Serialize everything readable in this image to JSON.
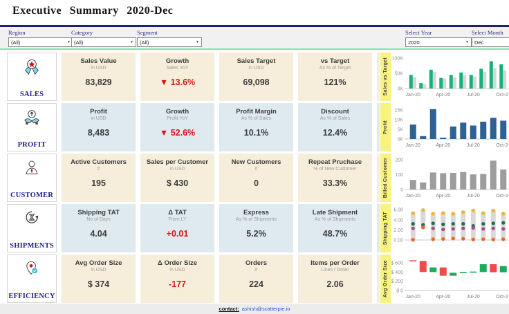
{
  "header": {
    "title": "Executive Summary 2020-Dec"
  },
  "filters": {
    "region": {
      "label": "Region",
      "value": "(All)"
    },
    "category": {
      "label": "Category",
      "value": "(All)"
    },
    "segment": {
      "label": "Segment",
      "value": "(All)"
    },
    "year": {
      "label": "Select Year",
      "value": "2020"
    },
    "month": {
      "label": "Select Month",
      "value": "Dec"
    }
  },
  "rows": [
    {
      "label": "SALES",
      "icon": "medal-icon",
      "cards": [
        {
          "title": "Sales Value",
          "subtitle": "in USD",
          "value": "83,829"
        },
        {
          "title": "Growth",
          "subtitle": "Sales YoY",
          "value": "▼ 13.6%",
          "value_color": "#d91616"
        },
        {
          "title": "Sales Target",
          "subtitle": "in USD",
          "value": "69,098"
        },
        {
          "title": "vs Target",
          "subtitle": "As % of Target",
          "value": "121%"
        }
      ]
    },
    {
      "label": "PROFIT",
      "icon": "hands-coin-icon",
      "cards": [
        {
          "title": "Profit",
          "subtitle": "in USD",
          "value": "8,483"
        },
        {
          "title": "Growth",
          "subtitle": "Profit YoY",
          "value": "▼ 52.6%",
          "value_color": "#d91616"
        },
        {
          "title": "Profit Margin",
          "subtitle": "As % of Sales",
          "value": "10.1%"
        },
        {
          "title": "Discount",
          "subtitle": "As % of Sales",
          "value": "12.4%"
        }
      ]
    },
    {
      "label": "CUSTOMER",
      "icon": "person-icon",
      "cards": [
        {
          "title": "Active Customers",
          "subtitle": "#",
          "value": "195"
        },
        {
          "title": "Sales per Customer",
          "subtitle": "in USD",
          "value": "$ 430"
        },
        {
          "title": "New Customers",
          "subtitle": "#",
          "value": "0"
        },
        {
          "title": "Repeat Pruchase",
          "subtitle": "% of New Customer",
          "value": "33.3%"
        }
      ]
    },
    {
      "label": "SHIPMENTS",
      "icon": "hourglass-cycle-icon",
      "cards": [
        {
          "title": "Shipping TAT",
          "subtitle": "No of Days",
          "value": "4.04"
        },
        {
          "title": "Δ TAT",
          "subtitle": "From LY",
          "value": "+0.01",
          "value_color": "#d91616"
        },
        {
          "title": "Express",
          "subtitle": "As % of Shipments",
          "value": "5.2%"
        },
        {
          "title": "Late Shipment",
          "subtitle": "As % of Shipments",
          "value": "48.7%"
        }
      ]
    },
    {
      "label": "EFFICIENCY",
      "icon": "pin-check-icon",
      "cards": [
        {
          "title": "Avg Order Size",
          "subtitle": "in USD",
          "value": "$ 374"
        },
        {
          "title": "Δ Order Size",
          "subtitle": "in USD",
          "value": "-177",
          "value_color": "#d91616"
        },
        {
          "title": "Orders",
          "subtitle": "#",
          "value": "224"
        },
        {
          "title": "Items per Order",
          "subtitle": "Lines / Order",
          "value": "2.06"
        }
      ]
    }
  ],
  "chart_data": [
    {
      "type": "grouped_bar",
      "title": "Sales vs Target",
      "ylabel": "Sales vs Target",
      "categories": [
        "Jan-20",
        "Feb-20",
        "Mar-20",
        "Apr-20",
        "May-20",
        "Jun-20",
        "Jul-20",
        "Aug-20",
        "Sep-20",
        "Oct-20"
      ],
      "series": [
        {
          "name": "Sales",
          "color": "#17b07c",
          "values": [
            45,
            18,
            62,
            35,
            45,
            53,
            45,
            65,
            90,
            80
          ]
        },
        {
          "name": "Target",
          "color": "#d6d6d6",
          "values": [
            38,
            14,
            55,
            33,
            37,
            43,
            40,
            55,
            67,
            60
          ]
        }
      ],
      "units": "K USD",
      "ylim": [
        0,
        105
      ],
      "yticks": [
        [
          0,
          "0K"
        ],
        [
          50,
          "50K"
        ],
        [
          100,
          "100K"
        ]
      ],
      "xticks": [
        [
          0,
          "Jan-20"
        ],
        [
          3,
          "Apr-20"
        ],
        [
          6,
          "Jul-20"
        ],
        [
          9,
          "Oct-20"
        ]
      ]
    },
    {
      "type": "bar",
      "title": "Profit",
      "ylabel": "Profit",
      "categories": [
        "Jan-20",
        "Feb-20",
        "Mar-20",
        "Apr-20",
        "May-20",
        "Jun-20",
        "Jul-20",
        "Aug-20",
        "Sep-20",
        "Oct-20"
      ],
      "values": [
        7.5,
        1.5,
        15.5,
        0.7,
        6.5,
        8.5,
        7,
        9,
        11,
        9.5
      ],
      "color": "#2e6293",
      "units": "K USD",
      "ylim": [
        0,
        16.5
      ],
      "yticks": [
        [
          0,
          "0K"
        ],
        [
          5,
          "5K"
        ],
        [
          10,
          "10K"
        ],
        [
          15,
          "15K"
        ]
      ],
      "xticks": [
        [
          0,
          "Jan-20"
        ],
        [
          3,
          "Apr-20"
        ],
        [
          6,
          "Jul-20"
        ],
        [
          9,
          "Oct-20"
        ]
      ]
    },
    {
      "type": "bar",
      "title": "Billed Customer",
      "ylabel": "Billed Customer",
      "categories": [
        "Jan-20",
        "Feb-20",
        "Mar-20",
        "Apr-20",
        "May-20",
        "Jun-20",
        "Jul-20",
        "Aug-20",
        "Sep-20",
        "Oct-20"
      ],
      "values": [
        65,
        48,
        115,
        110,
        112,
        118,
        102,
        105,
        195,
        135
      ],
      "color": "#9d9d9d",
      "units": "customers",
      "ylim": [
        0,
        215
      ],
      "yticks": [
        [
          0,
          "0"
        ],
        [
          100,
          "100"
        ],
        [
          200,
          "200"
        ]
      ],
      "xticks": [
        [
          0,
          "Jan-20"
        ],
        [
          3,
          "Apr-20"
        ],
        [
          6,
          "Jul-20"
        ],
        [
          9,
          "Oct-20"
        ]
      ]
    },
    {
      "type": "dot_range",
      "title": "Shipping TAT",
      "ylabel": "Shipping TAT",
      "categories": [
        "Jan-20",
        "Feb-20",
        "Mar-20",
        "Apr-20",
        "May-20",
        "Jun-20",
        "Jul-20",
        "Aug-20",
        "Sep-20",
        "Oct-20"
      ],
      "series": [
        {
          "name": "yellow",
          "color": "#f2b52e",
          "values": [
            5.3,
            5.9,
            5.2,
            5.3,
            5.2,
            5.5,
            5.8,
            5.3,
            5.8,
            5.2
          ]
        },
        {
          "name": "green",
          "color": "#1e6e52",
          "values": [
            3.2,
            3.0,
            3.3,
            3.1,
            3.2,
            3.2,
            2.8,
            3.2,
            3.3,
            3.4
          ]
        },
        {
          "name": "purple",
          "color": "#a34b86",
          "values": [
            2.3,
            2.6,
            2.3,
            2.1,
            2.2,
            2.3,
            2.4,
            2.2,
            2.3,
            2.2
          ]
        },
        {
          "name": "orange",
          "color": "#f4641e",
          "values": [
            0.05,
            2.5,
            0.15,
            0.2,
            0.3,
            0.25,
            0.1,
            0.15,
            0.1,
            0.15
          ]
        }
      ],
      "range_color": "#d9d9d9",
      "units": "days",
      "ylim": [
        0,
        6.3
      ],
      "yticks": [
        [
          0,
          "0.00"
        ],
        [
          2,
          "2.00"
        ],
        [
          4,
          "4.00"
        ],
        [
          6,
          "6.00"
        ]
      ],
      "xticks": []
    },
    {
      "type": "waterfall",
      "title": "Avg Order Size",
      "ylabel": "Avg Order Size",
      "categories": [
        "Jan-20",
        "Feb-20",
        "Mar-20",
        "Apr-20",
        "May-20",
        "Jun-20",
        "Jul-20",
        "Aug-20",
        "Sep-20",
        "Oct-20"
      ],
      "steps": [
        [
          655,
          640
        ],
        [
          640,
          400
        ],
        [
          400,
          500
        ],
        [
          500,
          320
        ],
        [
          320,
          385
        ],
        [
          385,
          405
        ],
        [
          400,
          410
        ],
        [
          400,
          570
        ],
        [
          570,
          395
        ],
        [
          395,
          530
        ]
      ],
      "colors": {
        "up": "#1cab5c",
        "down": "#f04b4b"
      },
      "units": "USD",
      "ylim": [
        0,
        690
      ],
      "yticks": [
        [
          0,
          "$ 0"
        ],
        [
          200,
          "$ 200"
        ],
        [
          400,
          "$ 400"
        ],
        [
          600,
          "$ 600"
        ]
      ],
      "xticks": [
        [
          0,
          "Jan-20"
        ],
        [
          3,
          "Apr-20"
        ],
        [
          6,
          "Jul-20"
        ],
        [
          9,
          "Oct-20"
        ]
      ]
    }
  ],
  "footer": {
    "contact_label": "contact:",
    "contact_email": "ashish@scatterpie.io"
  },
  "colors": {
    "navy": "#20207a",
    "mint": "#7ee6b0",
    "card_beige": "#f6eedb",
    "card_blue": "#dfe9f0",
    "negative_red": "#d91616",
    "yellow_strip": "#f8f37e"
  }
}
